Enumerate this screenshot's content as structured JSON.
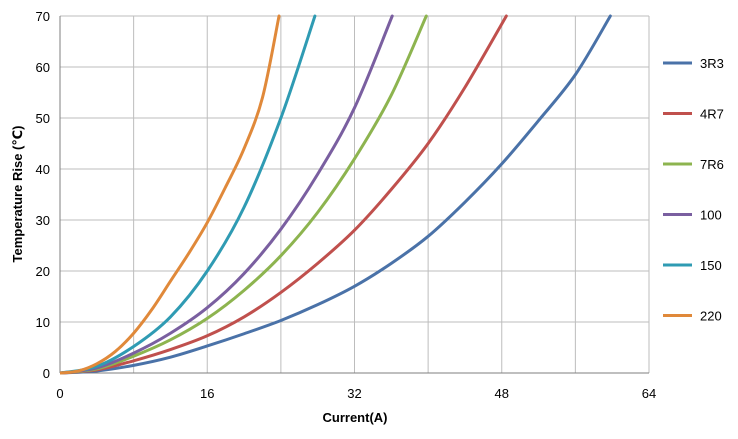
{
  "chart_data": {
    "type": "line",
    "title": "",
    "xlabel": "Current(A)",
    "ylabel": "Temperature Rise (℃)",
    "xlim": [
      0,
      64
    ],
    "ylim": [
      0,
      70
    ],
    "xticks": [
      0,
      16,
      32,
      48,
      64
    ],
    "yticks": [
      0,
      10,
      20,
      30,
      40,
      50,
      60,
      70
    ],
    "grid": true,
    "legend_position": "right",
    "series": [
      {
        "name": "3R3",
        "color": "#4a72a8",
        "points": [
          [
            0,
            0
          ],
          [
            4,
            0.4
          ],
          [
            8,
            1.5
          ],
          [
            12,
            3.1
          ],
          [
            16,
            5.3
          ],
          [
            20,
            7.7
          ],
          [
            24,
            10.3
          ],
          [
            28,
            13.4
          ],
          [
            32,
            17.0
          ],
          [
            36,
            21.5
          ],
          [
            40,
            26.8
          ],
          [
            44,
            33.5
          ],
          [
            48,
            41.0
          ],
          [
            52,
            49.5
          ],
          [
            56,
            58.5
          ],
          [
            59.8,
            70
          ]
        ]
      },
      {
        "name": "4R7",
        "color": "#c0504d",
        "points": [
          [
            0,
            0
          ],
          [
            4,
            0.6
          ],
          [
            8,
            2.4
          ],
          [
            12,
            4.6
          ],
          [
            16,
            7.3
          ],
          [
            20,
            11.0
          ],
          [
            24,
            15.8
          ],
          [
            28,
            21.5
          ],
          [
            32,
            28.0
          ],
          [
            36,
            36.0
          ],
          [
            40,
            45.0
          ],
          [
            44,
            56.0
          ],
          [
            48.5,
            70
          ]
        ]
      },
      {
        "name": "7R6",
        "color": "#8db44f",
        "points": [
          [
            0,
            0
          ],
          [
            4,
            0.8
          ],
          [
            8,
            3.3
          ],
          [
            12,
            6.5
          ],
          [
            16,
            10.7
          ],
          [
            20,
            16.2
          ],
          [
            24,
            23.0
          ],
          [
            28,
            31.5
          ],
          [
            32,
            42.0
          ],
          [
            36,
            54.5
          ],
          [
            39.8,
            70
          ]
        ]
      },
      {
        "name": "100",
        "color": "#7a5fa0",
        "points": [
          [
            0,
            0
          ],
          [
            4,
            1.0
          ],
          [
            8,
            3.9
          ],
          [
            12,
            7.8
          ],
          [
            16,
            12.8
          ],
          [
            20,
            19.5
          ],
          [
            24,
            28.2
          ],
          [
            28,
            39.0
          ],
          [
            32,
            52.0
          ],
          [
            36.1,
            70
          ]
        ]
      },
      {
        "name": "150",
        "color": "#2f9bb3",
        "points": [
          [
            0,
            0
          ],
          [
            4,
            1.3
          ],
          [
            8,
            5.2
          ],
          [
            12,
            11.0
          ],
          [
            16,
            20.0
          ],
          [
            20,
            32.5
          ],
          [
            24,
            50.0
          ],
          [
            27.7,
            70
          ]
        ]
      },
      {
        "name": "220",
        "color": "#e0893a",
        "points": [
          [
            0,
            0
          ],
          [
            2,
            0.4
          ],
          [
            4,
            1.8
          ],
          [
            6,
            4.2
          ],
          [
            8,
            7.8
          ],
          [
            10,
            12.5
          ],
          [
            12,
            18.0
          ],
          [
            14,
            23.5
          ],
          [
            16,
            29.5
          ],
          [
            18,
            36.5
          ],
          [
            20,
            44.0
          ],
          [
            22,
            54.0
          ],
          [
            23.8,
            70
          ]
        ]
      }
    ]
  }
}
